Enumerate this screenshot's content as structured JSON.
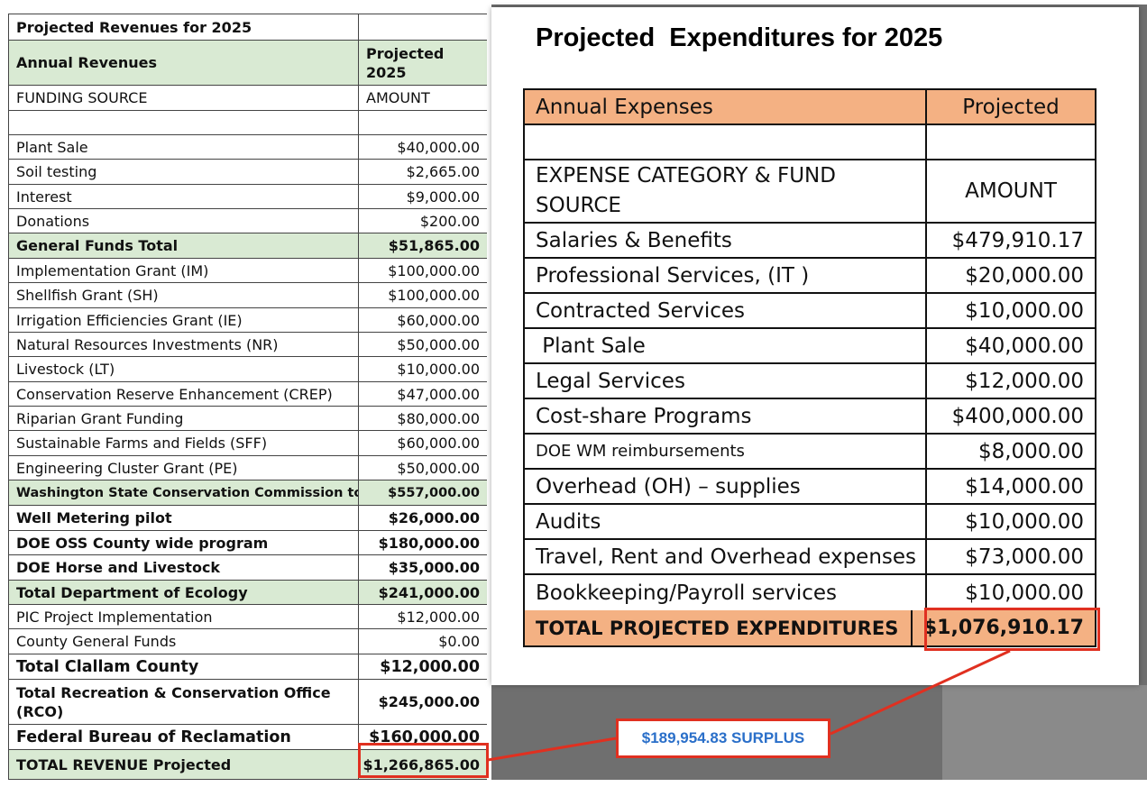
{
  "revenue": {
    "title": "Projected Revenues for 2025",
    "header": {
      "label": "Annual Revenues",
      "value": "Projected\n2025"
    },
    "subheader": {
      "label": "FUNDING SOURCE",
      "value": "AMOUNT"
    },
    "rows": [
      {
        "label": "Plant Sale",
        "value": "$40,000.00",
        "style": ""
      },
      {
        "label": "Soil testing",
        "value": "$2,665.00",
        "style": ""
      },
      {
        "label": "Interest",
        "value": "$9,000.00",
        "style": ""
      },
      {
        "label": "Donations",
        "value": "$200.00",
        "style": ""
      },
      {
        "label": "General Funds Total",
        "value": "$51,865.00",
        "style": "green bold"
      },
      {
        "label": "Implementation Grant (IM)",
        "value": "$100,000.00",
        "style": ""
      },
      {
        "label": "Shellfish Grant (SH)",
        "value": "$100,000.00",
        "style": ""
      },
      {
        "label": "Irrigation Efficiencies Grant (IE)",
        "value": "$60,000.00",
        "style": ""
      },
      {
        "label": "Natural Resources Investments (NR)",
        "value": "$50,000.00",
        "style": ""
      },
      {
        "label": "Livestock (LT)",
        "value": "$10,000.00",
        "style": ""
      },
      {
        "label": "Conservation Reserve Enhancement (CREP)",
        "value": "$47,000.00",
        "style": ""
      },
      {
        "label": "Riparian Grant Funding",
        "value": "$80,000.00",
        "style": ""
      },
      {
        "label": "Sustainable Farms and Fields (SFF)",
        "value": "$60,000.00",
        "style": ""
      },
      {
        "label": "Engineering Cluster Grant (PE)",
        "value": "$50,000.00",
        "style": ""
      },
      {
        "label": "Washington State Conservation Commission total",
        "value": "$557,000.00",
        "style": "green bold small"
      },
      {
        "label": "Well Metering pilot",
        "value": "$26,000.00",
        "style": "bold"
      },
      {
        "label": "DOE OSS County wide program",
        "value": "$180,000.00",
        "style": "bold"
      },
      {
        "label": "DOE Horse and Livestock",
        "value": "$35,000.00",
        "style": "bold"
      },
      {
        "label": "Total Department of Ecology",
        "value": "$241,000.00",
        "style": "green bold"
      },
      {
        "label": "PIC Project Implementation",
        "value": "$12,000.00",
        "style": ""
      },
      {
        "label": "County General Funds",
        "value": "$0.00",
        "style": ""
      },
      {
        "label": "Total Clallam County",
        "value": "$12,000.00",
        "style": "bold big"
      },
      {
        "label": "Total Recreation & Conservation Office (RCO)",
        "value": "$245,000.00",
        "style": "bold wrap"
      },
      {
        "label": "Federal Bureau of Reclamation",
        "value": "$160,000.00",
        "style": "bold big"
      },
      {
        "label": "TOTAL REVENUE Projected",
        "value": "$1,266,865.00",
        "style": "green bold"
      }
    ]
  },
  "expenditures": {
    "title": "Projected  Expenditures for 2025",
    "header": {
      "label": "Annual Expenses",
      "value": "Projected"
    },
    "subheader": {
      "label": "EXPENSE CATEGORY & FUND SOURCE",
      "value": "AMOUNT"
    },
    "rows": [
      {
        "label": "Salaries & Benefits",
        "value": "$479,910.17",
        "style": ""
      },
      {
        "label": "Professional Services, (IT )",
        "value": "$20,000.00",
        "style": ""
      },
      {
        "label": "Contracted Services",
        "value": "$10,000.00",
        "style": ""
      },
      {
        "label": " Plant Sale",
        "value": "$40,000.00",
        "style": ""
      },
      {
        "label": "Legal Services",
        "value": "$12,000.00",
        "style": ""
      },
      {
        "label": "Cost-share Programs",
        "value": "$400,000.00",
        "style": ""
      },
      {
        "label": "DOE WM reimbursements",
        "value": "$8,000.00",
        "style": "small"
      },
      {
        "label": "Overhead (OH) – supplies",
        "value": "$14,000.00",
        "style": ""
      },
      {
        "label": "Audits",
        "value": "$10,000.00",
        "style": ""
      },
      {
        "label": "Travel, Rent and Overhead expenses",
        "value": "$73,000.00",
        "style": ""
      },
      {
        "label": "Bookkeeping/Payroll services",
        "value": "$10,000.00",
        "style": ""
      }
    ],
    "total": {
      "label": "TOTAL PROJECTED EXPENDITURES",
      "value": "$1,076,910.17"
    }
  },
  "annotation": {
    "surplus": "$189,954.83 SURPLUS",
    "highlight_color": "#e03020",
    "text_color": "#2a6fc9"
  }
}
